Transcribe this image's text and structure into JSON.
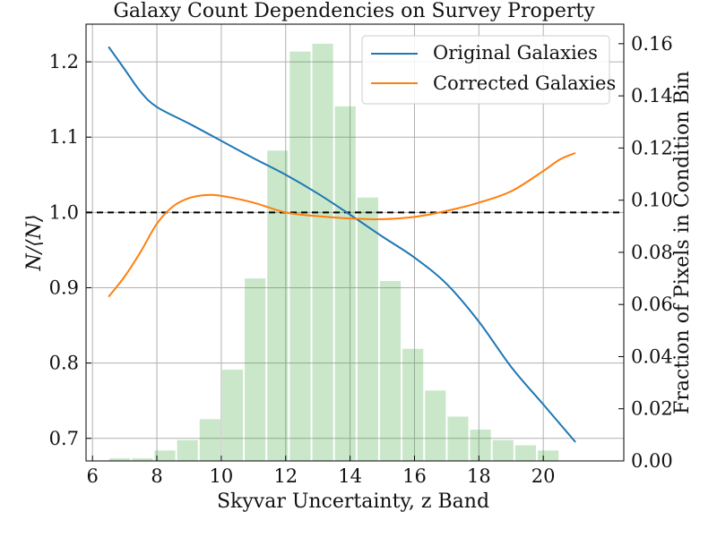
{
  "chart_data": {
    "type": "line",
    "title": "Galaxy Count Dependencies on Survey Property",
    "xlabel": "Skyvar Uncertainty, z Band",
    "ylabel": "N/⟨N⟩",
    "y2label": "Fraction of Pixels in Condition Bin",
    "xlim": [
      5.8,
      22.5
    ],
    "ylim": [
      0.67,
      1.25
    ],
    "y2lim": [
      0.0,
      0.1675
    ],
    "xticks": [
      "6",
      "8",
      "10",
      "12",
      "14",
      "16",
      "18",
      "20"
    ],
    "yticks": [
      "0.7",
      "0.8",
      "0.9",
      "1.0",
      "1.1",
      "1.2"
    ],
    "y2ticks": [
      "0.00",
      "0.02",
      "0.04",
      "0.06",
      "0.08",
      "0.10",
      "0.12",
      "0.14",
      "0.16"
    ],
    "grid": true,
    "legend_position": "top-right",
    "reference_line": {
      "y": 1.0,
      "style": "dashed",
      "color": "#000000"
    },
    "series": [
      {
        "name": "Original Galaxies",
        "color": "#1f77b4",
        "x": [
          6.5,
          7.0,
          7.5,
          8.0,
          9.0,
          10.0,
          11.0,
          12.0,
          13.0,
          14.0,
          15.0,
          16.0,
          17.0,
          18.0,
          19.0,
          20.0,
          21.0
        ],
        "values": [
          1.22,
          1.19,
          1.16,
          1.14,
          1.118,
          1.095,
          1.072,
          1.05,
          1.025,
          0.997,
          0.968,
          0.94,
          0.905,
          0.855,
          0.795,
          0.745,
          0.695
        ]
      },
      {
        "name": "Corrected Galaxies",
        "color": "#ff7f0e",
        "x": [
          6.5,
          7.0,
          7.5,
          8.0,
          8.5,
          9.0,
          9.5,
          10.0,
          11.0,
          12.0,
          13.0,
          14.0,
          15.0,
          16.0,
          17.0,
          18.0,
          19.0,
          20.0,
          20.5,
          21.0
        ],
        "values": [
          0.888,
          0.915,
          0.948,
          0.985,
          1.008,
          1.019,
          1.023,
          1.022,
          1.013,
          1.0,
          0.995,
          0.992,
          0.991,
          0.994,
          1.002,
          1.013,
          1.028,
          1.055,
          1.07,
          1.079
        ]
      }
    ],
    "histogram": {
      "color": "#2ca02c",
      "opacity": 0.25,
      "bin_edges": [
        6.5,
        7.2,
        7.9,
        8.6,
        9.3,
        10.0,
        10.7,
        11.4,
        12.1,
        12.8,
        13.5,
        14.2,
        14.9,
        15.6,
        16.3,
        17.0,
        17.7,
        18.4,
        19.1,
        19.8,
        20.5,
        21.2
      ],
      "values": [
        0.001,
        0.001,
        0.004,
        0.008,
        0.016,
        0.035,
        0.07,
        0.119,
        0.157,
        0.16,
        0.136,
        0.101,
        0.069,
        0.043,
        0.027,
        0.017,
        0.012,
        0.008,
        0.006,
        0.004,
        0.0
      ]
    }
  }
}
